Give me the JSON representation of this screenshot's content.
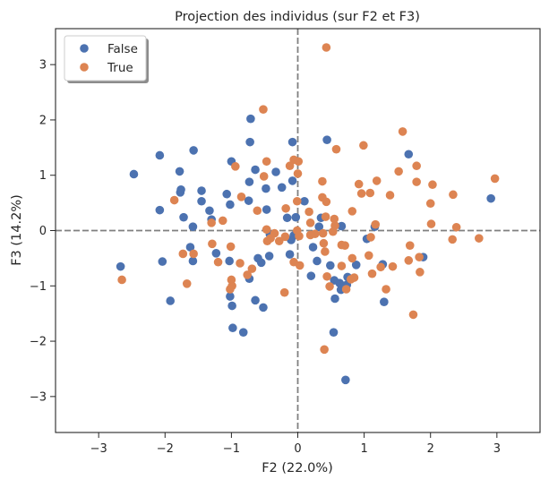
{
  "chart_data": {
    "type": "scatter",
    "title": "Projection des individus (sur F2 et F3)",
    "xlabel": "F2 (22.0%)",
    "ylabel": "F3 (14.2%)",
    "xlim": [
      -3.65,
      3.65
    ],
    "ylim": [
      -3.65,
      3.65
    ],
    "xticks": [
      -3,
      -2,
      -1,
      0,
      1,
      2,
      3
    ],
    "yticks": [
      -3,
      -2,
      -1,
      0,
      1,
      2,
      3
    ],
    "reference_lines": {
      "x": 0,
      "y": 0,
      "style": "dashed",
      "color": "#808080"
    },
    "grid": false,
    "legend_position": "upper-left",
    "series": [
      {
        "name": "False",
        "color": "#4c72b0",
        "points": [
          [
            -2.67,
            -0.65
          ],
          [
            -2.47,
            1.02
          ],
          [
            -2.08,
            1.36
          ],
          [
            -2.08,
            0.37
          ],
          [
            -2.04,
            -0.56
          ],
          [
            -1.92,
            -1.27
          ],
          [
            -1.78,
            1.07
          ],
          [
            -1.77,
            0.69
          ],
          [
            -1.76,
            0.74
          ],
          [
            -1.72,
            0.24
          ],
          [
            -1.57,
            1.45
          ],
          [
            -1.58,
            0.07
          ],
          [
            -1.58,
            -0.55
          ],
          [
            -1.62,
            -0.3
          ],
          [
            -1.45,
            0.72
          ],
          [
            -1.45,
            0.53
          ],
          [
            -1.33,
            0.36
          ],
          [
            -1.3,
            0.2
          ],
          [
            -1.23,
            -0.41
          ],
          [
            -1.07,
            0.66
          ],
          [
            -1.0,
            1.25
          ],
          [
            -1.02,
            0.47
          ],
          [
            -1.03,
            -0.55
          ],
          [
            -1.02,
            -1.19
          ],
          [
            -0.99,
            -1.36
          ],
          [
            -0.98,
            -1.76
          ],
          [
            -0.82,
            -1.84
          ],
          [
            -0.71,
            2.02
          ],
          [
            -0.72,
            1.6
          ],
          [
            -0.73,
            0.88
          ],
          [
            -0.74,
            0.54
          ],
          [
            -0.64,
            1.1
          ],
          [
            -0.73,
            -0.87
          ],
          [
            -0.64,
            -1.26
          ],
          [
            -0.6,
            -0.5
          ],
          [
            -0.55,
            -0.58
          ],
          [
            -0.52,
            -1.39
          ],
          [
            -0.48,
            0.76
          ],
          [
            -0.47,
            0.38
          ],
          [
            -0.43,
            -0.46
          ],
          [
            -0.42,
            -0.07
          ],
          [
            -0.33,
            1.06
          ],
          [
            -0.24,
            0.78
          ],
          [
            -0.16,
            0.23
          ],
          [
            -0.12,
            -0.43
          ],
          [
            -0.08,
            1.6
          ],
          [
            -0.08,
            0.9
          ],
          [
            -0.03,
            0.24
          ],
          [
            -0.06,
            -0.09
          ],
          [
            -0.1,
            -0.17
          ],
          [
            0.1,
            0.53
          ],
          [
            0.2,
            -0.82
          ],
          [
            0.23,
            -0.3
          ],
          [
            0.35,
            0.23
          ],
          [
            0.32,
            0.07
          ],
          [
            0.29,
            -0.55
          ],
          [
            0.44,
            1.64
          ],
          [
            0.49,
            -0.63
          ],
          [
            0.55,
            -0.9
          ],
          [
            0.56,
            -1.23
          ],
          [
            0.54,
            -1.84
          ],
          [
            0.66,
            0.08
          ],
          [
            0.63,
            -0.95
          ],
          [
            0.65,
            -1.07
          ],
          [
            0.74,
            -0.98
          ],
          [
            0.75,
            -0.84
          ],
          [
            0.72,
            -2.7
          ],
          [
            0.88,
            -0.62
          ],
          [
            1.04,
            -0.15
          ],
          [
            1.16,
            0.07
          ],
          [
            1.28,
            -0.61
          ],
          [
            1.3,
            -1.29
          ],
          [
            1.67,
            1.38
          ],
          [
            1.89,
            -0.48
          ],
          [
            2.91,
            0.58
          ]
        ]
      },
      {
        "name": "True",
        "color": "#dd8452",
        "points": [
          [
            -2.65,
            -0.89
          ],
          [
            -1.86,
            0.55
          ],
          [
            -1.73,
            -0.42
          ],
          [
            -1.67,
            -0.96
          ],
          [
            -1.57,
            -0.42
          ],
          [
            -1.29,
            -0.24
          ],
          [
            -1.3,
            0.14
          ],
          [
            -1.2,
            -0.57
          ],
          [
            -1.13,
            0.18
          ],
          [
            -1.01,
            -0.29
          ],
          [
            -1.0,
            -0.89
          ],
          [
            -0.99,
            -1.0
          ],
          [
            -1.02,
            -1.06
          ],
          [
            -0.94,
            1.16
          ],
          [
            -0.85,
            0.61
          ],
          [
            -0.87,
            -0.59
          ],
          [
            -0.76,
            -0.8
          ],
          [
            -0.69,
            -0.69
          ],
          [
            -0.61,
            0.36
          ],
          [
            -0.52,
            2.19
          ],
          [
            -0.47,
            1.25
          ],
          [
            -0.51,
            0.98
          ],
          [
            -0.46,
            -0.19
          ],
          [
            -0.41,
            -0.14
          ],
          [
            -0.47,
            0.02
          ],
          [
            -0.35,
            -0.05
          ],
          [
            -0.28,
            -0.19
          ],
          [
            -0.19,
            -0.11
          ],
          [
            -0.2,
            -1.12
          ],
          [
            -0.18,
            0.4
          ],
          [
            -0.12,
            1.17
          ],
          [
            -0.06,
            1.28
          ],
          [
            0.01,
            1.25
          ],
          [
            0.0,
            1.03
          ],
          [
            -0.01,
            0.53
          ],
          [
            -0.06,
            -0.57
          ],
          [
            -0.01,
            0.0
          ],
          [
            0.02,
            -0.1
          ],
          [
            0.03,
            -0.63
          ],
          [
            0.17,
            0.34
          ],
          [
            0.19,
            0.14
          ],
          [
            0.19,
            -0.08
          ],
          [
            0.26,
            -0.06
          ],
          [
            0.37,
            0.89
          ],
          [
            0.37,
            0.6
          ],
          [
            0.38,
            -0.05
          ],
          [
            0.39,
            -0.23
          ],
          [
            0.43,
            0.52
          ],
          [
            0.42,
            0.25
          ],
          [
            0.41,
            -0.38
          ],
          [
            0.44,
            -0.83
          ],
          [
            0.48,
            -1.01
          ],
          [
            0.43,
            3.31
          ],
          [
            0.4,
            -2.15
          ],
          [
            0.53,
            -0.02
          ],
          [
            0.55,
            0.21
          ],
          [
            0.56,
            0.09
          ],
          [
            0.58,
            1.47
          ],
          [
            0.66,
            -0.26
          ],
          [
            0.71,
            -0.27
          ],
          [
            0.66,
            -0.64
          ],
          [
            0.73,
            -1.06
          ],
          [
            0.8,
            -0.88
          ],
          [
            0.85,
            -0.85
          ],
          [
            0.82,
            -0.5
          ],
          [
            0.82,
            0.35
          ],
          [
            0.92,
            0.84
          ],
          [
            0.96,
            0.67
          ],
          [
            0.99,
            1.54
          ],
          [
            1.1,
            -0.12
          ],
          [
            1.07,
            -0.45
          ],
          [
            1.09,
            0.68
          ],
          [
            1.19,
            0.9
          ],
          [
            1.17,
            0.11
          ],
          [
            1.12,
            -0.78
          ],
          [
            1.25,
            -0.66
          ],
          [
            1.33,
            -1.06
          ],
          [
            1.39,
            0.64
          ],
          [
            1.43,
            -0.65
          ],
          [
            1.52,
            1.07
          ],
          [
            1.58,
            1.79
          ],
          [
            1.69,
            -0.27
          ],
          [
            1.67,
            -0.54
          ],
          [
            1.74,
            -1.52
          ],
          [
            1.79,
            1.17
          ],
          [
            1.79,
            0.88
          ],
          [
            1.83,
            -0.48
          ],
          [
            1.84,
            -0.75
          ],
          [
            2.0,
            0.49
          ],
          [
            2.01,
            0.12
          ],
          [
            2.03,
            0.83
          ],
          [
            2.34,
            0.65
          ],
          [
            2.33,
            -0.16
          ],
          [
            2.39,
            0.06
          ],
          [
            2.73,
            -0.14
          ],
          [
            2.97,
            0.94
          ]
        ]
      }
    ]
  }
}
